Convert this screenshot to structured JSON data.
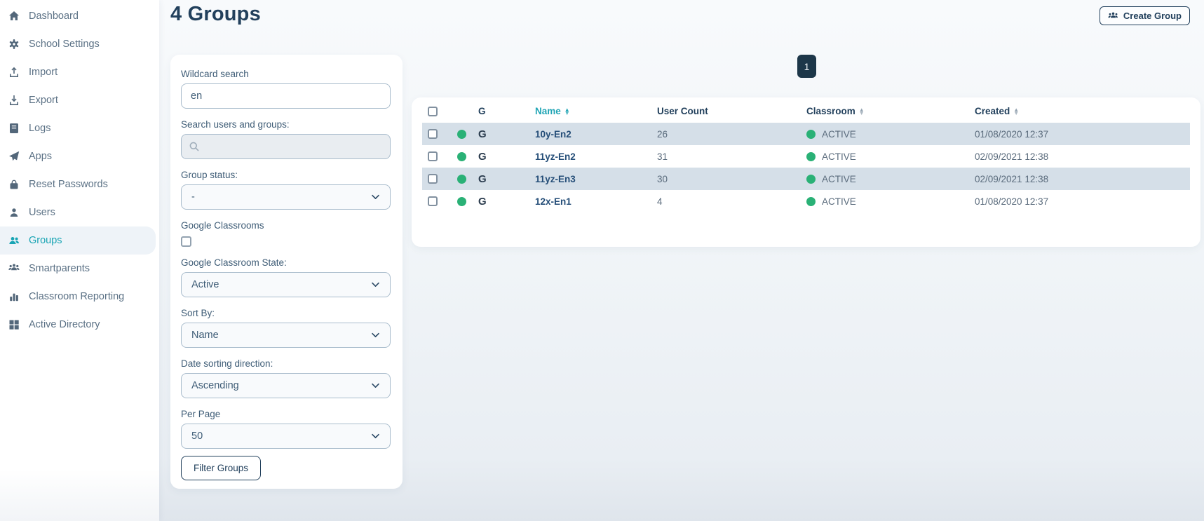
{
  "colors": {
    "accent_teal": "#18a4b4",
    "navy": "#22405c",
    "status_green": "#2ab176",
    "striped_row": "#d5dfe8"
  },
  "sidebar": {
    "items": [
      {
        "icon": "home-icon",
        "label": "Dashboard",
        "active": false
      },
      {
        "icon": "gear-icon",
        "label": "School Settings",
        "active": false
      },
      {
        "icon": "upload-icon",
        "label": "Import",
        "active": false
      },
      {
        "icon": "download-icon",
        "label": "Export",
        "active": false
      },
      {
        "icon": "logs-icon",
        "label": "Logs",
        "active": false
      },
      {
        "icon": "paper-plane-icon",
        "label": "Apps",
        "active": false
      },
      {
        "icon": "lock-icon",
        "label": "Reset Passwords",
        "active": false
      },
      {
        "icon": "user-icon",
        "label": "Users",
        "active": false
      },
      {
        "icon": "users-icon",
        "label": "Groups",
        "active": true
      },
      {
        "icon": "people-group-icon",
        "label": "Smartparents",
        "active": false
      },
      {
        "icon": "bar-chart-icon",
        "label": "Classroom Reporting",
        "active": false
      },
      {
        "icon": "grid-icon",
        "label": "Active Directory",
        "active": false
      }
    ]
  },
  "header": {
    "title": "4 Groups",
    "create_group_button": "Create Group"
  },
  "pagination": {
    "current_page": "1"
  },
  "filters": {
    "wildcard_label": "Wildcard search",
    "wildcard_value": "en",
    "search_label": "Search users and groups:",
    "search_value": "",
    "group_status_label": "Group status:",
    "group_status_value": "-",
    "google_classrooms_label": "Google Classrooms",
    "google_classrooms_checked": false,
    "gc_state_label": "Google Classroom State:",
    "gc_state_value": "Active",
    "sort_by_label": "Sort By:",
    "sort_by_value": "Name",
    "date_dir_label": "Date sorting direction:",
    "date_dir_value": "Ascending",
    "per_page_label": "Per Page",
    "per_page_value": "50",
    "filter_button": "Filter Groups"
  },
  "table": {
    "columns": [
      {
        "key": "select",
        "label": "",
        "sort": null
      },
      {
        "key": "status",
        "label": "",
        "sort": null
      },
      {
        "key": "google",
        "label": "G",
        "sort": null
      },
      {
        "key": "name",
        "label": "Name",
        "sort": "teal"
      },
      {
        "key": "user_count",
        "label": "User Count",
        "sort": null
      },
      {
        "key": "classroom",
        "label": "Classroom",
        "sort": "gray"
      },
      {
        "key": "created",
        "label": "Created",
        "sort": "gray"
      }
    ],
    "rows": [
      {
        "google": "G",
        "name": "10y-En2",
        "user_count": "26",
        "classroom": "ACTIVE",
        "created": "01/08/2020 12:37",
        "striped": true
      },
      {
        "google": "G",
        "name": "11yz-En2",
        "user_count": "31",
        "classroom": "ACTIVE",
        "created": "02/09/2021 12:38",
        "striped": false
      },
      {
        "google": "G",
        "name": "11yz-En3",
        "user_count": "30",
        "classroom": "ACTIVE",
        "created": "02/09/2021 12:38",
        "striped": true
      },
      {
        "google": "G",
        "name": "12x-En1",
        "user_count": "4",
        "classroom": "ACTIVE",
        "created": "01/08/2020 12:37",
        "striped": false
      }
    ]
  }
}
